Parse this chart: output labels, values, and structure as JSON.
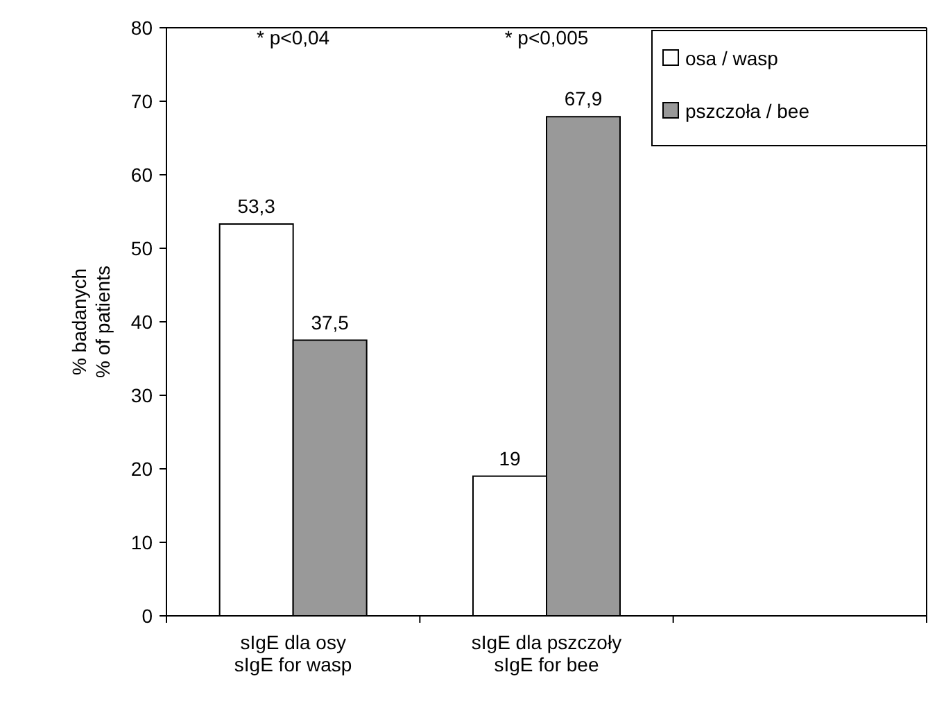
{
  "chart_data": {
    "type": "bar",
    "ylabel": "% badanych\n% of patients",
    "categories": [
      "sIgE dla osy\nsIgE for wasp",
      "sIgE dla pszczoły\nsIgE for bee",
      null
    ],
    "series": [
      {
        "name": "osa / wasp",
        "color": "#ffffff",
        "values": [
          53.3,
          19,
          null
        ],
        "value_labels": [
          "53,3",
          "19",
          null
        ]
      },
      {
        "name": "pszczoła / bee",
        "color": "#999999",
        "values": [
          37.5,
          67.9,
          null
        ],
        "value_labels": [
          "37,5",
          "67,9",
          null
        ]
      }
    ],
    "ylim": [
      0,
      80
    ],
    "yticks": [
      0,
      10,
      20,
      30,
      40,
      50,
      60,
      70,
      80
    ],
    "grid": false,
    "legend": "top right",
    "annotations": [
      "* p<0,04",
      "* p<0,005"
    ]
  }
}
